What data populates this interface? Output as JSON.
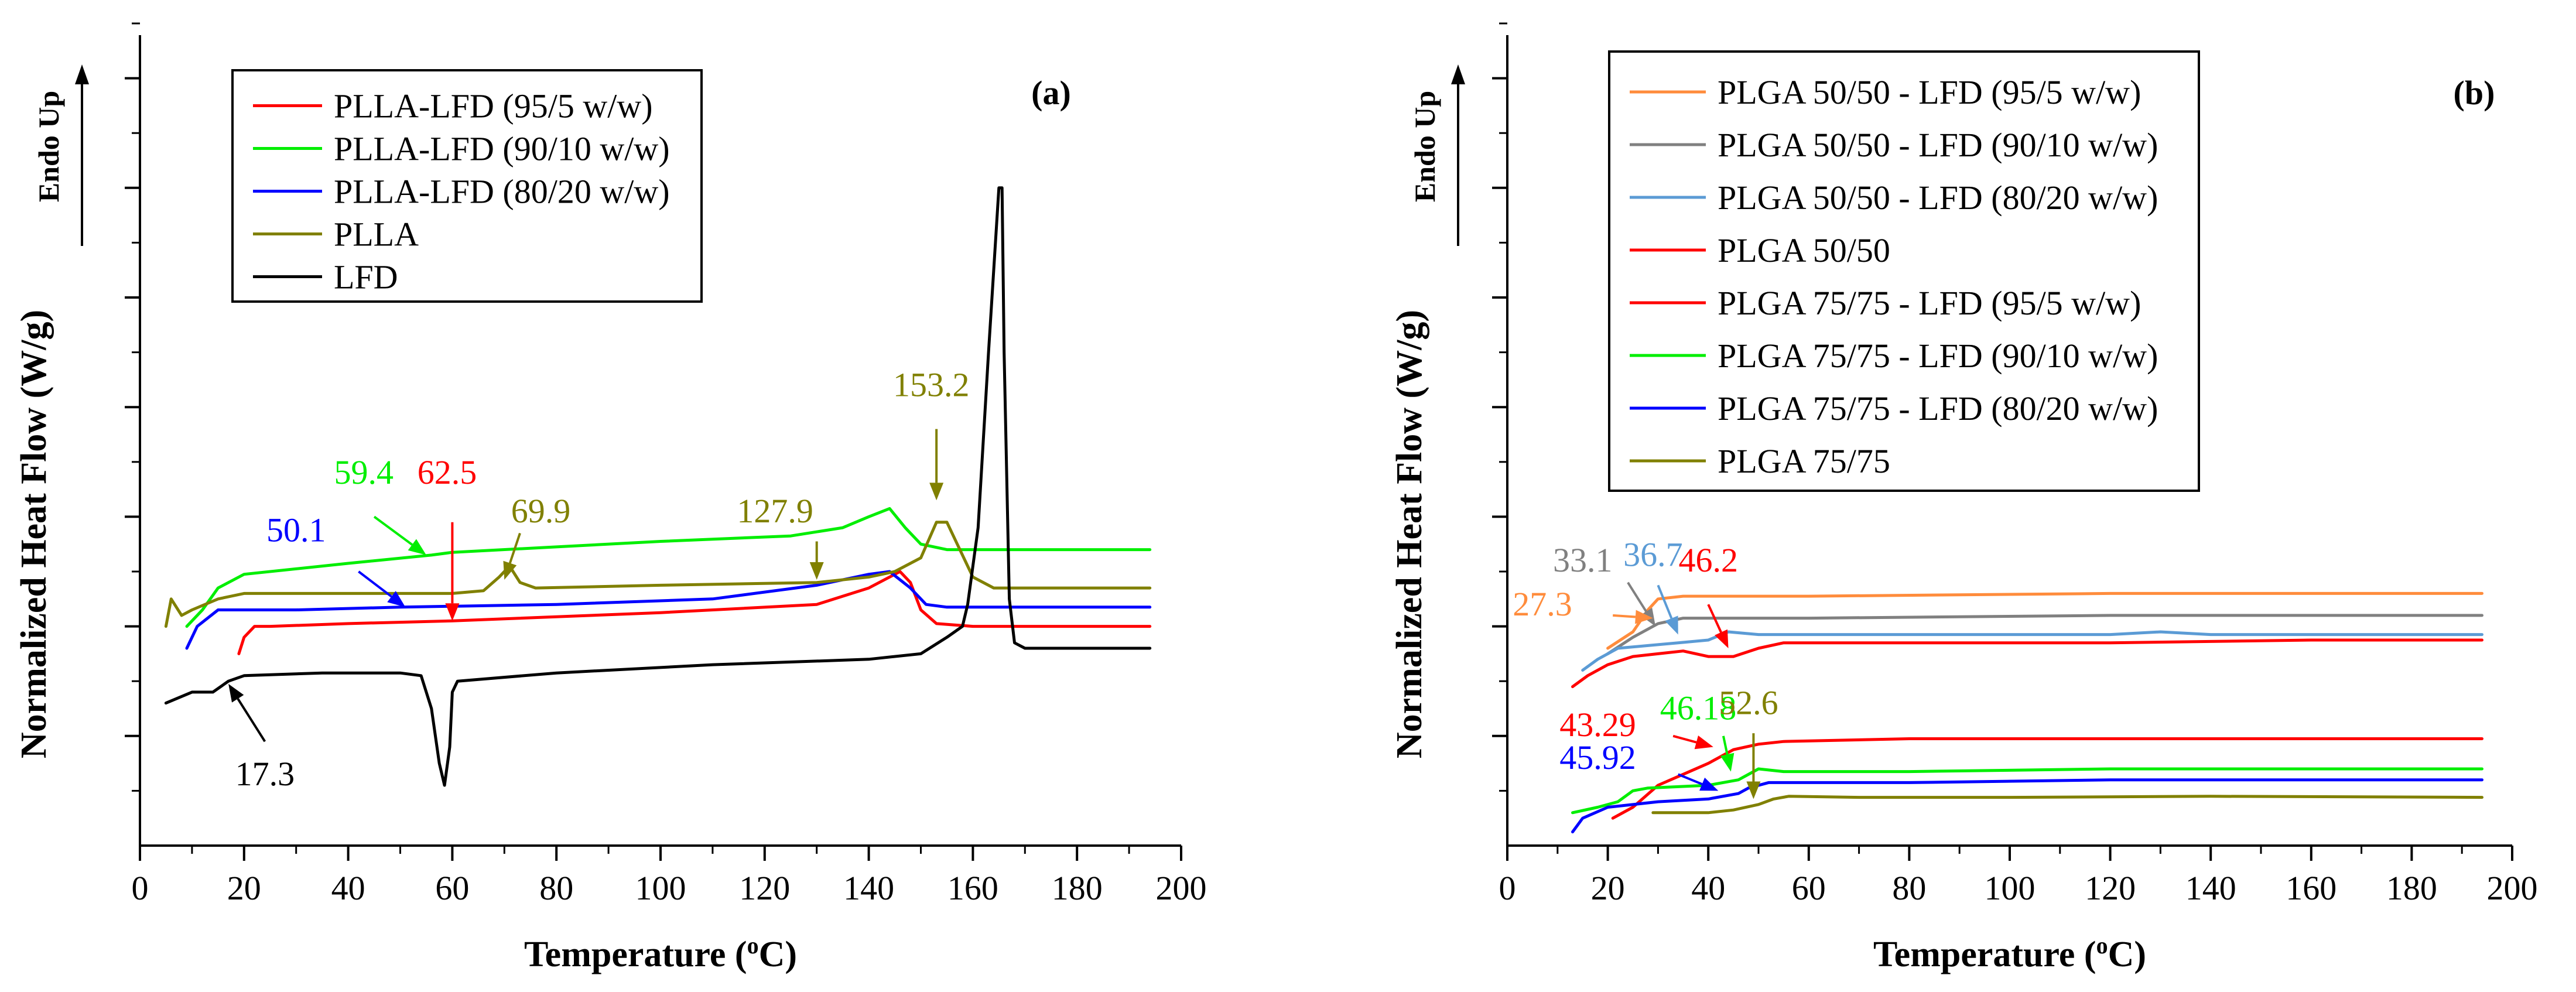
{
  "chart_data": [
    {
      "panel": "a",
      "type": "line",
      "title": "(a)",
      "xlabel": "Temperature (°C)",
      "ylabel": "Normalized Heat Flow (W/g)",
      "endo_label": "Endo Up",
      "xlim": [
        0,
        200
      ],
      "ylim": [
        0,
        15
      ],
      "xticks": [
        0,
        20,
        40,
        60,
        80,
        100,
        120,
        140,
        160,
        180,
        200
      ],
      "legend": [
        "PLLA-LFD (95/5 w/w)",
        "PLLA-LFD (90/10 w/w)",
        "PLLA-LFD (80/20 w/w)",
        "PLLA",
        "LFD"
      ],
      "series": [
        {
          "name": "PLLA-LFD (95/5 w/w)",
          "color": "#ff0000",
          "points": [
            [
              19,
              3.5
            ],
            [
              20,
              3.8
            ],
            [
              22,
              4.0
            ],
            [
              25,
              4.0
            ],
            [
              40,
              4.05
            ],
            [
              60,
              4.1
            ],
            [
              100,
              4.25
            ],
            [
              130,
              4.4
            ],
            [
              140,
              4.7
            ],
            [
              146,
              5.0
            ],
            [
              148,
              4.8
            ],
            [
              150,
              4.3
            ],
            [
              153,
              4.05
            ],
            [
              160,
              4.0
            ],
            [
              194,
              4.0
            ]
          ]
        },
        {
          "name": "PLLA-LFD (90/10 w/w)",
          "color": "#00ee00",
          "points": [
            [
              9,
              4.0
            ],
            [
              12,
              4.3
            ],
            [
              15,
              4.7
            ],
            [
              20,
              4.95
            ],
            [
              40,
              5.15
            ],
            [
              56,
              5.3
            ],
            [
              60,
              5.35
            ],
            [
              80,
              5.45
            ],
            [
              100,
              5.55
            ],
            [
              125,
              5.65
            ],
            [
              135,
              5.8
            ],
            [
              140,
              6.0
            ],
            [
              144,
              6.15
            ],
            [
              147,
              5.8
            ],
            [
              150,
              5.5
            ],
            [
              155,
              5.4
            ],
            [
              194,
              5.4
            ]
          ]
        },
        {
          "name": "PLLA-LFD (80/20 w/w)",
          "color": "#0000ff",
          "points": [
            [
              9,
              3.6
            ],
            [
              11,
              4.0
            ],
            [
              15,
              4.3
            ],
            [
              30,
              4.3
            ],
            [
              50,
              4.35
            ],
            [
              80,
              4.4
            ],
            [
              110,
              4.5
            ],
            [
              130,
              4.75
            ],
            [
              140,
              4.95
            ],
            [
              144,
              5.0
            ],
            [
              148,
              4.7
            ],
            [
              151,
              4.4
            ],
            [
              155,
              4.35
            ],
            [
              194,
              4.35
            ]
          ]
        },
        {
          "name": "PLLA",
          "color": "#808000",
          "points": [
            [
              5,
              4.0
            ],
            [
              6,
              4.5
            ],
            [
              8,
              4.2
            ],
            [
              10,
              4.3
            ],
            [
              15,
              4.5
            ],
            [
              20,
              4.6
            ],
            [
              60,
              4.6
            ],
            [
              66,
              4.65
            ],
            [
              69,
              4.9
            ],
            [
              71,
              5.1
            ],
            [
              73,
              4.8
            ],
            [
              76,
              4.7
            ],
            [
              100,
              4.75
            ],
            [
              130,
              4.8
            ],
            [
              140,
              4.9
            ],
            [
              145,
              5.0
            ],
            [
              150,
              5.25
            ],
            [
              153,
              5.9
            ],
            [
              155,
              5.9
            ],
            [
              157,
              5.5
            ],
            [
              160,
              4.9
            ],
            [
              164,
              4.7
            ],
            [
              194,
              4.7
            ]
          ]
        },
        {
          "name": "LFD",
          "color": "#000000",
          "points": [
            [
              5,
              2.6
            ],
            [
              10,
              2.8
            ],
            [
              14,
              2.8
            ],
            [
              17,
              3.0
            ],
            [
              20,
              3.1
            ],
            [
              35,
              3.15
            ],
            [
              50,
              3.15
            ],
            [
              54,
              3.1
            ],
            [
              56,
              2.5
            ],
            [
              57.5,
              1.5
            ],
            [
              58.5,
              1.1
            ],
            [
              59.5,
              1.8
            ],
            [
              60,
              2.8
            ],
            [
              61,
              3.0
            ],
            [
              80,
              3.15
            ],
            [
              110,
              3.3
            ],
            [
              140,
              3.4
            ],
            [
              150,
              3.5
            ],
            [
              155,
              3.8
            ],
            [
              158,
              4.0
            ],
            [
              159,
              4.4
            ],
            [
              161,
              5.8
            ],
            [
              163,
              9.0
            ],
            [
              165,
              12.0
            ],
            [
              165.6,
              12.0
            ],
            [
              166,
              9.0
            ],
            [
              167,
              4.5
            ],
            [
              168,
              3.7
            ],
            [
              170,
              3.6
            ],
            [
              194,
              3.6
            ]
          ]
        }
      ],
      "annotations": [
        {
          "text": "59.4",
          "color": "#00ee00",
          "at": [
            55,
            5.3
          ],
          "from": [
            45,
            6.0
          ],
          "label": [
            43,
            6.6
          ]
        },
        {
          "text": "62.5",
          "color": "#ff0000",
          "at": [
            60,
            4.1
          ],
          "from": [
            60,
            5.9
          ],
          "label": [
            59,
            6.6
          ]
        },
        {
          "text": "69.9",
          "color": "#808000",
          "at": [
            70,
            4.85
          ],
          "from": [
            73,
            5.7
          ],
          "label": [
            77,
            5.9
          ]
        },
        {
          "text": "50.1",
          "color": "#0000ff",
          "at": [
            51,
            4.35
          ],
          "from": [
            42,
            5.0
          ],
          "label": [
            30,
            5.55
          ]
        },
        {
          "text": "127.9",
          "color": "#808000",
          "at": [
            130,
            4.85
          ],
          "from": [
            130,
            5.55
          ],
          "label": [
            122,
            5.9
          ]
        },
        {
          "text": "153.2",
          "color": "#808000",
          "at": [
            153,
            6.3
          ],
          "from": [
            153,
            7.6
          ],
          "label": [
            152,
            8.2
          ]
        },
        {
          "text": "17.3",
          "color": "#000000",
          "at": [
            17,
            2.95
          ],
          "from": [
            24,
            1.9
          ],
          "label": [
            24,
            1.1
          ]
        }
      ]
    },
    {
      "panel": "b",
      "type": "line",
      "title": "(b)",
      "xlabel": "Temperature (°C)",
      "ylabel": "Normalized Heat Flow (W/g)",
      "endo_label": "Endo Up",
      "xlim": [
        0,
        200
      ],
      "ylim": [
        0,
        15
      ],
      "xticks": [
        0,
        20,
        40,
        60,
        80,
        100,
        120,
        140,
        160,
        180,
        200
      ],
      "legend": [
        "PLGA 50/50 - LFD (95/5 w/w)",
        "PLGA 50/50 - LFD (90/10 w/w)",
        "PLGA 50/50 - LFD (80/20 w/w)",
        "PLGA 50/50",
        "PLGA 75/75 - LFD (95/5 w/w)",
        "PLGA 75/75 - LFD (90/10 w/w)",
        "PLGA 75/75 - LFD (80/20 w/w)",
        "PLGA 75/75"
      ],
      "series": [
        {
          "name": "PLGA 50/50 - LFD (95/5 w/w)",
          "color": "#ff8c3c",
          "points": [
            [
              20,
              3.6
            ],
            [
              25,
              3.9
            ],
            [
              28,
              4.3
            ],
            [
              30,
              4.5
            ],
            [
              35,
              4.55
            ],
            [
              60,
              4.55
            ],
            [
              120,
              4.6
            ],
            [
              194,
              4.6
            ]
          ]
        },
        {
          "name": "PLGA 50/50 - LFD (90/10 w/w)",
          "color": "#808080",
          "points": [
            [
              20,
              3.5
            ],
            [
              25,
              3.8
            ],
            [
              30,
              4.05
            ],
            [
              35,
              4.15
            ],
            [
              60,
              4.15
            ],
            [
              120,
              4.2
            ],
            [
              194,
              4.2
            ]
          ]
        },
        {
          "name": "PLGA 50/50 - LFD (80/20 w/w)",
          "color": "#5b9bd5",
          "points": [
            [
              15,
              3.2
            ],
            [
              18,
              3.4
            ],
            [
              22,
              3.6
            ],
            [
              28,
              3.65
            ],
            [
              34,
              3.7
            ],
            [
              40,
              3.75
            ],
            [
              44,
              3.9
            ],
            [
              50,
              3.85
            ],
            [
              80,
              3.85
            ],
            [
              120,
              3.85
            ],
            [
              130,
              3.9
            ],
            [
              140,
              3.85
            ],
            [
              194,
              3.85
            ]
          ]
        },
        {
          "name": "PLGA 50/50",
          "color": "#ff0000",
          "points": [
            [
              13,
              2.9
            ],
            [
              16,
              3.1
            ],
            [
              20,
              3.3
            ],
            [
              25,
              3.45
            ],
            [
              30,
              3.5
            ],
            [
              35,
              3.55
            ],
            [
              40,
              3.45
            ],
            [
              45,
              3.45
            ],
            [
              50,
              3.6
            ],
            [
              55,
              3.7
            ],
            [
              80,
              3.7
            ],
            [
              120,
              3.7
            ],
            [
              160,
              3.75
            ],
            [
              194,
              3.75
            ]
          ]
        },
        {
          "name": "PLGA 75/75 - LFD (95/5 w/w)",
          "color": "#ff0000",
          "points": [
            [
              21,
              0.5
            ],
            [
              25,
              0.7
            ],
            [
              30,
              1.1
            ],
            [
              35,
              1.3
            ],
            [
              40,
              1.5
            ],
            [
              45,
              1.75
            ],
            [
              50,
              1.85
            ],
            [
              55,
              1.9
            ],
            [
              80,
              1.95
            ],
            [
              120,
              1.95
            ],
            [
              194,
              1.95
            ]
          ]
        },
        {
          "name": "PLGA 75/75 - LFD (90/10 w/w)",
          "color": "#00ee00",
          "points": [
            [
              13,
              0.6
            ],
            [
              18,
              0.7
            ],
            [
              22,
              0.8
            ],
            [
              25,
              1.0
            ],
            [
              28,
              1.05
            ],
            [
              40,
              1.1
            ],
            [
              46,
              1.2
            ],
            [
              50,
              1.4
            ],
            [
              55,
              1.35
            ],
            [
              80,
              1.35
            ],
            [
              120,
              1.4
            ],
            [
              194,
              1.4
            ]
          ]
        },
        {
          "name": "PLGA 75/75 - LFD (80/20 w/w)",
          "color": "#0000ff",
          "points": [
            [
              13,
              0.25
            ],
            [
              15,
              0.5
            ],
            [
              20,
              0.7
            ],
            [
              30,
              0.8
            ],
            [
              40,
              0.85
            ],
            [
              46,
              0.95
            ],
            [
              48,
              1.05
            ],
            [
              52,
              1.15
            ],
            [
              60,
              1.15
            ],
            [
              80,
              1.15
            ],
            [
              120,
              1.2
            ],
            [
              194,
              1.2
            ]
          ]
        },
        {
          "name": "PLGA 75/75",
          "color": "#808000",
          "points": [
            [
              29,
              0.6
            ],
            [
              40,
              0.6
            ],
            [
              45,
              0.65
            ],
            [
              50,
              0.75
            ],
            [
              53,
              0.85
            ],
            [
              56,
              0.9
            ],
            [
              70,
              0.88
            ],
            [
              100,
              0.88
            ],
            [
              140,
              0.9
            ],
            [
              194,
              0.88
            ]
          ]
        }
      ],
      "annotations": [
        {
          "text": "33.1",
          "color": "#808080",
          "at": [
            29.5,
            4.0
          ],
          "from": [
            24,
            4.8
          ],
          "label": [
            15,
            5.0
          ]
        },
        {
          "text": "36.7",
          "color": "#5b9bd5",
          "at": [
            34,
            3.85
          ],
          "from": [
            30,
            4.75
          ],
          "label": [
            29,
            5.1
          ]
        },
        {
          "text": "46.2",
          "color": "#ff0000",
          "at": [
            44,
            3.6
          ],
          "from": [
            40,
            4.4
          ],
          "label": [
            40,
            5.0
          ]
        },
        {
          "text": "27.3",
          "color": "#ff8c3c",
          "at": [
            29,
            4.15
          ],
          "from": [
            21,
            4.2
          ],
          "label": [
            7,
            4.2
          ]
        },
        {
          "text": "43.29",
          "color": "#ff0000",
          "at": [
            41,
            1.8
          ],
          "from": [
            33,
            2.0
          ],
          "label": [
            18,
            2.0
          ]
        },
        {
          "text": "46.18",
          "color": "#00ee00",
          "at": [
            44.5,
            1.35
          ],
          "from": [
            43,
            2.0
          ],
          "label": [
            38,
            2.3
          ]
        },
        {
          "text": "52.6",
          "color": "#808000",
          "at": [
            49,
            0.85
          ],
          "from": [
            49,
            2.05
          ],
          "label": [
            48,
            2.4
          ]
        },
        {
          "text": "45.92",
          "color": "#0000ff",
          "at": [
            42,
            1.0
          ],
          "from": [
            34,
            1.3
          ],
          "label": [
            18,
            1.4
          ]
        }
      ]
    }
  ]
}
